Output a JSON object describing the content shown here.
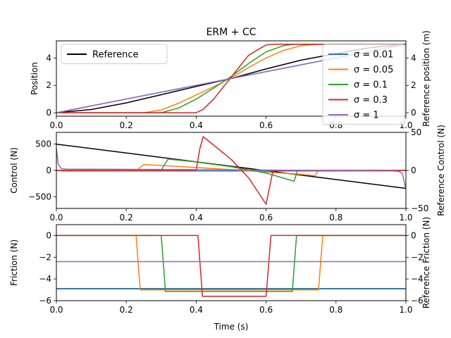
{
  "title": "ERM + CC",
  "colors": {
    "reference": "#000000",
    "s001": "#1f77b4",
    "s005": "#ff7f0e",
    "s01": "#2ca02c",
    "s03": "#d62728",
    "s1": "#9467bd"
  },
  "chart_data": [
    {
      "type": "line",
      "title": "ERM + CC",
      "xlabel": "",
      "ylabel": "Position",
      "ylabel_right": "Reference position (m)",
      "xlim": [
        0,
        1
      ],
      "ylim": [
        -0.25,
        5.25
      ],
      "ylim_right": [
        -0.25,
        5.25
      ],
      "xticks": [
        0.0,
        0.2,
        0.4,
        0.6,
        0.8,
        1.0
      ],
      "yticks": [
        0,
        2,
        4
      ],
      "yticks_right": [
        0,
        2,
        4
      ],
      "legend_left": "upper-left",
      "legend_right": "upper-right",
      "series": [
        {
          "name": "Reference",
          "color_key": "reference",
          "axis": "right",
          "x": [
            0,
            0.1,
            0.2,
            0.3,
            0.4,
            0.5,
            0.6,
            0.7,
            0.8,
            0.9,
            1.0
          ],
          "y": [
            0,
            0.24,
            0.72,
            1.32,
            1.92,
            2.5,
            3.2,
            3.84,
            4.32,
            4.76,
            5.0
          ]
        },
        {
          "name": "σ = 0.01",
          "color_key": "s001",
          "x": [
            0,
            1.0
          ],
          "y": [
            0,
            5.0
          ]
        },
        {
          "name": "σ = 0.05",
          "color_key": "s005",
          "x": [
            0,
            0.25,
            0.3,
            0.35,
            0.4,
            0.45,
            0.5,
            0.55,
            0.6,
            0.65,
            0.7,
            0.75,
            1.0
          ],
          "y": [
            0,
            0,
            0.2,
            0.7,
            1.3,
            1.9,
            2.55,
            3.3,
            4.0,
            4.55,
            4.9,
            5.0,
            5.0
          ]
        },
        {
          "name": "σ = 0.1",
          "color_key": "s01",
          "x": [
            0,
            0.3,
            0.35,
            0.4,
            0.45,
            0.5,
            0.55,
            0.6,
            0.65,
            0.68,
            1.0
          ],
          "y": [
            0,
            0,
            0.35,
            1.0,
            1.8,
            2.65,
            3.6,
            4.45,
            4.9,
            5.0,
            5.0
          ]
        },
        {
          "name": "σ = 0.3",
          "color_key": "s03",
          "x": [
            0,
            0.4,
            0.42,
            0.45,
            0.5,
            0.55,
            0.6,
            0.62,
            1.0
          ],
          "y": [
            0,
            0,
            0.25,
            1.0,
            2.6,
            4.2,
            4.95,
            5.0,
            5.0
          ]
        },
        {
          "name": "σ = 1",
          "color_key": "s1",
          "x": [
            0,
            1.0
          ],
          "y": [
            0,
            5.0
          ]
        }
      ]
    },
    {
      "type": "line",
      "xlabel": "",
      "ylabel": "Control (N)",
      "ylabel_right": "Reference Control (N)",
      "xlim": [
        0,
        1
      ],
      "ylim": [
        -720,
        720
      ],
      "ylim_right": [
        -50,
        50
      ],
      "xticks": [
        0.0,
        0.2,
        0.4,
        0.6,
        0.8,
        1.0
      ],
      "yticks": [
        -500,
        0,
        500
      ],
      "yticks_right": [
        -50,
        0,
        50
      ],
      "series": [
        {
          "name": "Reference",
          "color_key": "reference",
          "axis": "right",
          "x": [
            0,
            1.0
          ],
          "y": [
            34.5,
            -23.6
          ]
        },
        {
          "name": "σ = 0.01",
          "color_key": "s001",
          "x": [
            0,
            0.02,
            0.5,
            0.98,
            0.995,
            1.0
          ],
          "y": [
            0,
            -10,
            -10,
            -10,
            5,
            0
          ]
        },
        {
          "name": "σ = 0.05",
          "color_key": "s005",
          "x": [
            0,
            0.23,
            0.24,
            0.25,
            0.3,
            0.4,
            0.5,
            0.6,
            0.7,
            0.74,
            0.75,
            1.0
          ],
          "y": [
            0,
            0,
            60,
            110,
            95,
            55,
            15,
            -30,
            -75,
            -100,
            0,
            0
          ]
        },
        {
          "name": "σ = 0.1",
          "color_key": "s01",
          "x": [
            0,
            0.3,
            0.31,
            0.32,
            0.4,
            0.5,
            0.6,
            0.66,
            0.68,
            0.69,
            1.0
          ],
          "y": [
            0,
            0,
            120,
            215,
            160,
            70,
            -50,
            -165,
            -205,
            0,
            0
          ]
        },
        {
          "name": "σ = 0.3",
          "color_key": "s03",
          "x": [
            0,
            0.4,
            0.41,
            0.42,
            0.5,
            0.55,
            0.6,
            0.61,
            0.62,
            1.0
          ],
          "y": [
            0,
            0,
            400,
            640,
            210,
            -140,
            -640,
            -310,
            0,
            0
          ]
        },
        {
          "name": "σ = 1",
          "color_key": "s1",
          "x": [
            0,
            0.005,
            0.015,
            0.03,
            0.5,
            0.96,
            0.98,
            0.99,
            1.0
          ],
          "y": [
            420,
            120,
            30,
            25,
            12,
            -10,
            -20,
            -60,
            -360
          ]
        }
      ]
    },
    {
      "type": "line",
      "xlabel": "Time (s)",
      "ylabel": "Friction (N)",
      "ylabel_right": "Reference Friction (N)",
      "xlim": [
        0,
        1
      ],
      "ylim": [
        -6,
        1
      ],
      "ylim_right": [
        -6,
        1
      ],
      "xticks": [
        0.0,
        0.2,
        0.4,
        0.6,
        0.8,
        1.0
      ],
      "yticks": [
        -6,
        -4,
        -2,
        0
      ],
      "yticks_right": [
        -6,
        -4,
        -2,
        0
      ],
      "series": [
        {
          "name": "Reference",
          "color_key": "reference",
          "axis": "right",
          "x": [
            0,
            1.0
          ],
          "y": [
            -4.9,
            -4.9
          ]
        },
        {
          "name": "σ = 0.01",
          "color_key": "s001",
          "x": [
            0,
            1.0
          ],
          "y": [
            -4.9,
            -4.9
          ]
        },
        {
          "name": "σ = 0.05",
          "color_key": "s005",
          "x": [
            0,
            0.228,
            0.24,
            0.75,
            0.762,
            1.0
          ],
          "y": [
            0,
            0,
            -5.0,
            -5.0,
            0,
            0
          ]
        },
        {
          "name": "σ = 0.1",
          "color_key": "s01",
          "x": [
            0,
            0.3,
            0.312,
            0.675,
            0.687,
            1.0
          ],
          "y": [
            0,
            0,
            -5.15,
            -5.15,
            0,
            0
          ]
        },
        {
          "name": "σ = 0.3",
          "color_key": "s03",
          "x": [
            0,
            0.405,
            0.418,
            0.6,
            0.614,
            1.0
          ],
          "y": [
            0,
            0,
            -5.6,
            -5.6,
            0,
            0
          ]
        },
        {
          "name": "σ = 1",
          "color_key": "s1",
          "x": [
            0,
            1.0
          ],
          "y": [
            -2.4,
            -2.4
          ]
        }
      ]
    }
  ],
  "legend_left": [
    {
      "label": "Reference",
      "color_key": "reference"
    }
  ],
  "legend_right": [
    {
      "label": "σ = 0.01",
      "color_key": "s001"
    },
    {
      "label": "σ = 0.05",
      "color_key": "s005"
    },
    {
      "label": "σ = 0.1",
      "color_key": "s01"
    },
    {
      "label": "σ = 0.3",
      "color_key": "s03"
    },
    {
      "label": "σ = 1",
      "color_key": "s1"
    }
  ]
}
